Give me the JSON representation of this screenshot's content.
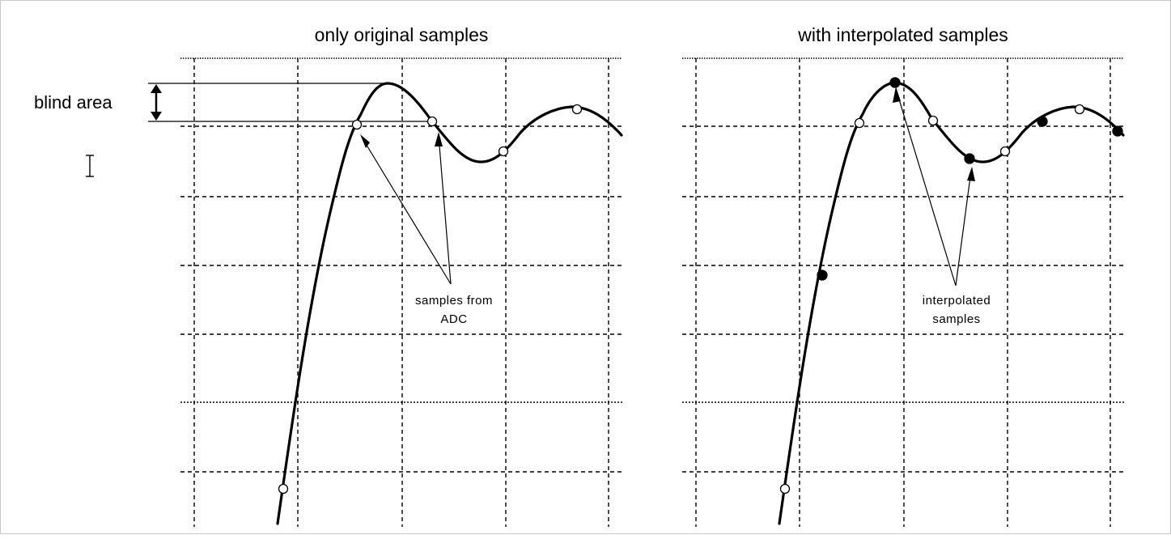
{
  "left_panel": {
    "title": "only original samples",
    "annotation_line1": "samples from",
    "annotation_line2": "ADC"
  },
  "right_panel": {
    "title": "with interpolated samples",
    "annotation_line1": "interpolated",
    "annotation_line2": "samples"
  },
  "blind_area_label": "blind area",
  "cursor_icon": "text-cursor-icon"
}
